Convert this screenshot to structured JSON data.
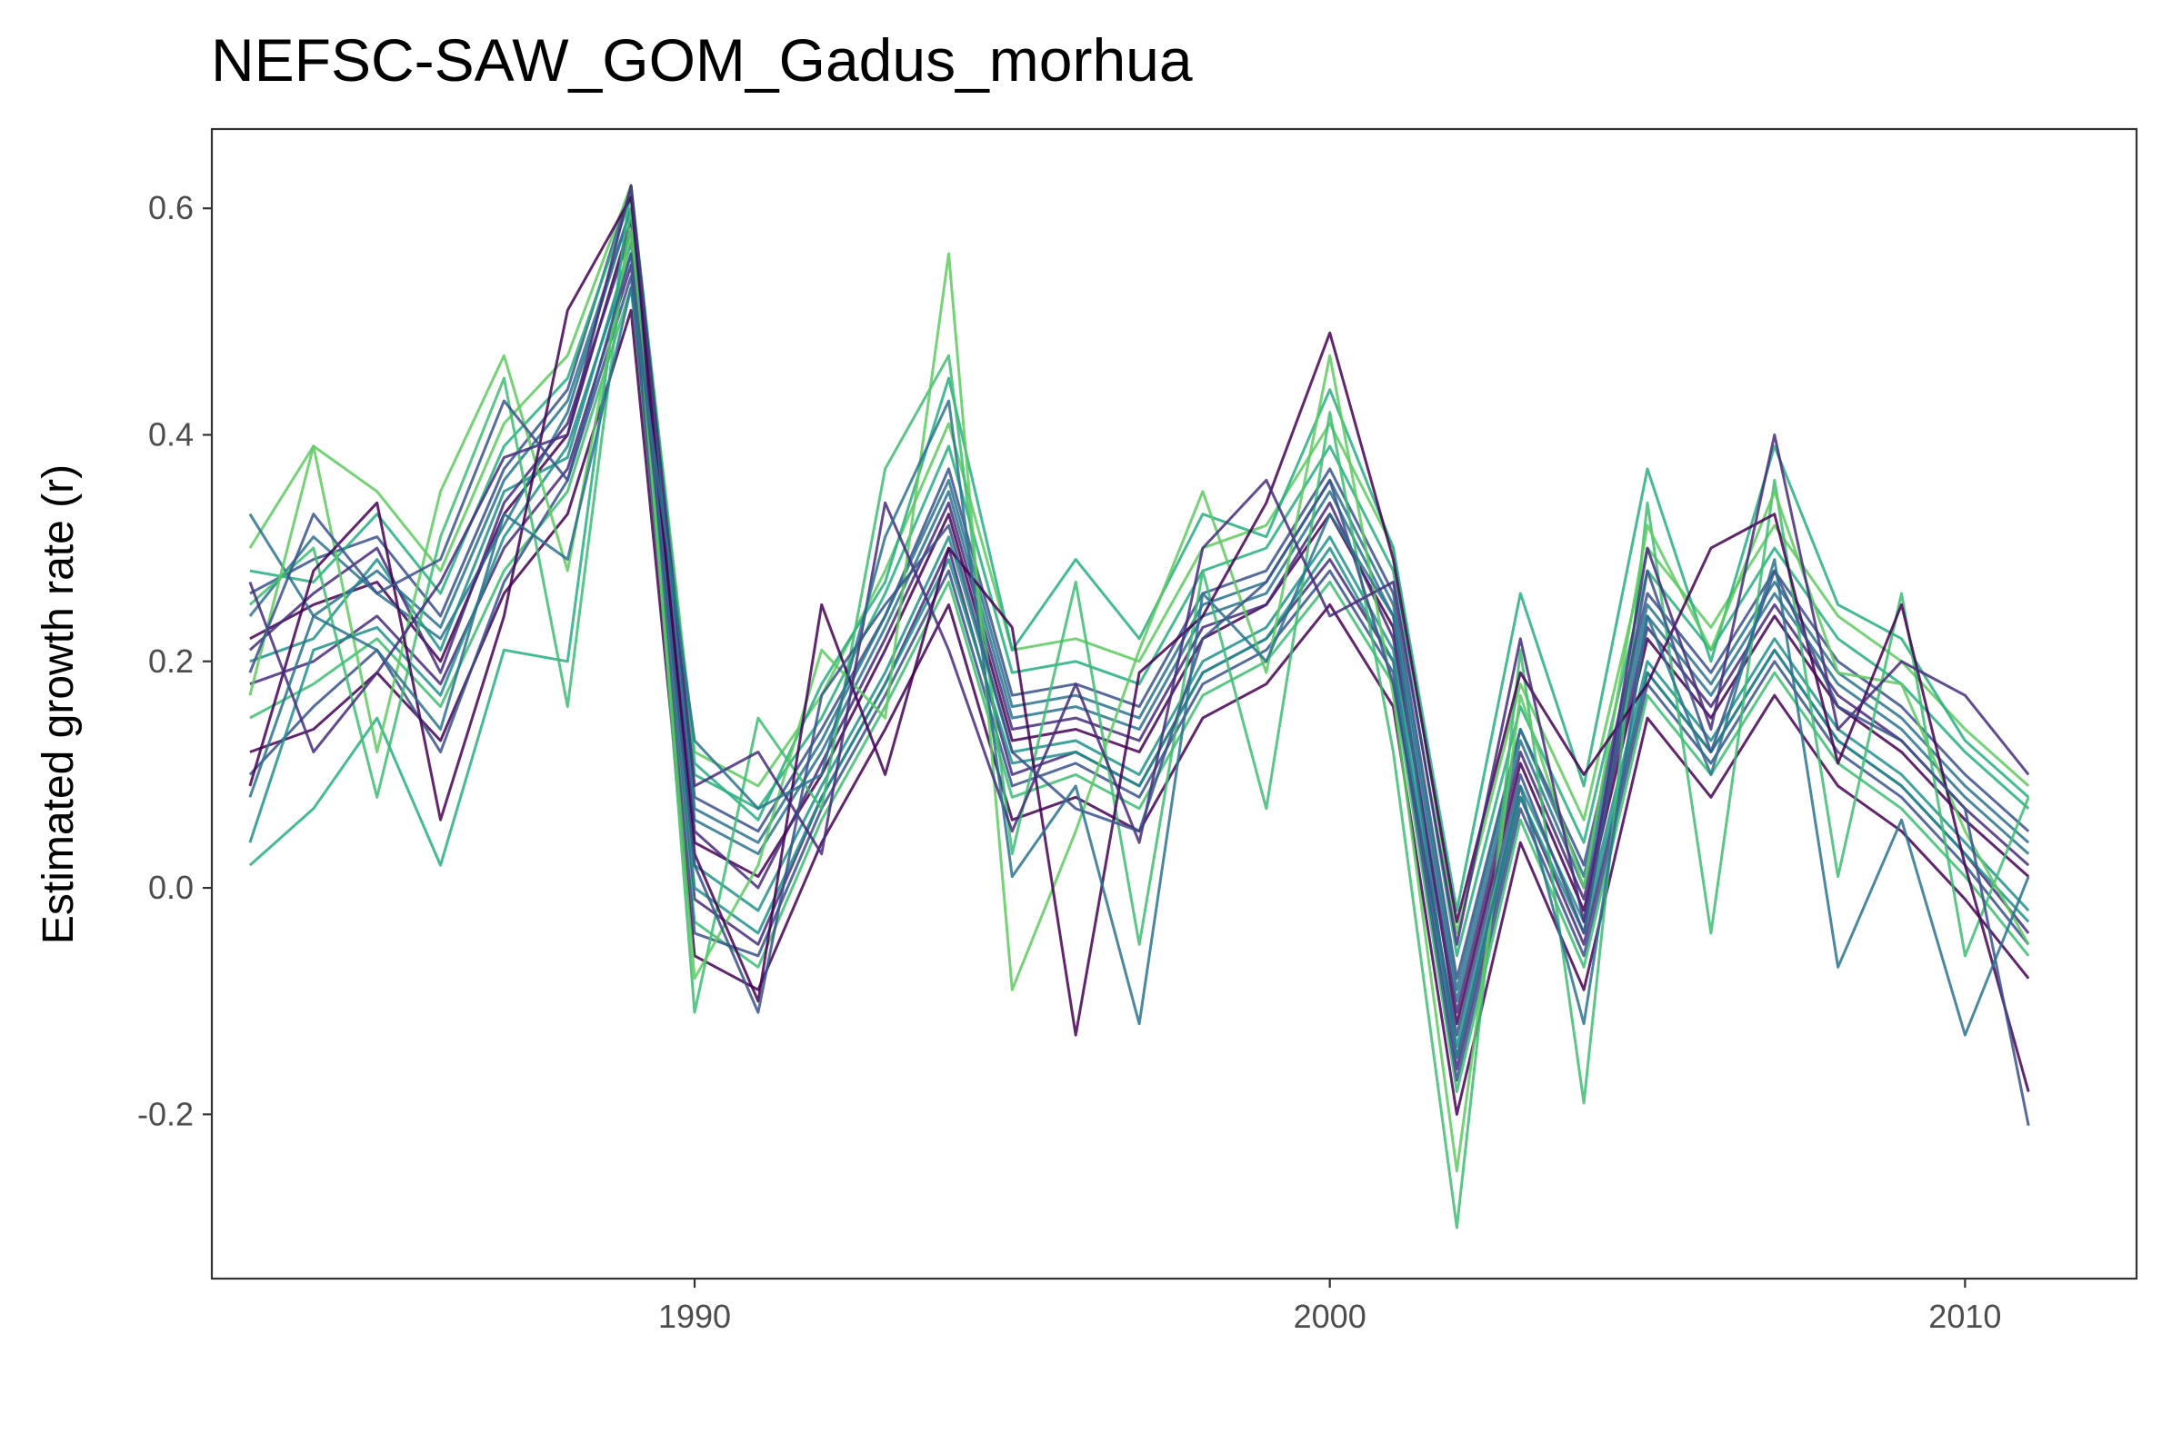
{
  "chart_data": {
    "type": "line",
    "title": "NEFSC-SAW_GOM_Gadus_morhua",
    "xlabel": "",
    "ylabel": "Estimated growth rate (r)",
    "xlim": [
      1982.4,
      2012.7
    ],
    "ylim": [
      -0.345,
      0.67
    ],
    "x_ticks": [
      1990,
      2000,
      2010
    ],
    "x_tick_labels": [
      "1990",
      "2000",
      "2010"
    ],
    "y_ticks": [
      -0.2,
      0.0,
      0.2,
      0.4,
      0.6
    ],
    "y_tick_labels": [
      "-0.2",
      "0.0",
      "0.2",
      "0.4",
      "0.6"
    ],
    "grid": false,
    "legend": "none",
    "x": [
      1983,
      1984,
      1985,
      1986,
      1987,
      1988,
      1989,
      1990,
      1991,
      1992,
      1993,
      1994,
      1995,
      1996,
      1997,
      1998,
      1999,
      2000,
      2001,
      2002,
      2003,
      2004,
      2005,
      2006,
      2007,
      2008,
      2009,
      2010,
      2011
    ],
    "palette": [
      "#440154",
      "#472d7b",
      "#3b528b",
      "#2c728e",
      "#21918c",
      "#28ae80",
      "#3fbc73",
      "#5ec962"
    ],
    "series": [
      {
        "values": [
          0.22,
          0.25,
          0.27,
          0.2,
          0.33,
          0.4,
          0.59,
          0.04,
          0.01,
          0.1,
          0.21,
          0.33,
          0.13,
          0.14,
          0.12,
          0.22,
          0.25,
          0.33,
          0.23,
          -0.12,
          0.11,
          -0.02,
          0.22,
          0.15,
          0.24,
          0.16,
          0.12,
          0.06,
          0.01
        ]
      },
      {
        "values": [
          0.18,
          0.2,
          0.24,
          0.18,
          0.3,
          0.37,
          0.55,
          -0.01,
          -0.05,
          0.08,
          0.18,
          0.3,
          0.1,
          0.12,
          0.09,
          0.19,
          0.22,
          0.29,
          0.2,
          -0.16,
          0.08,
          -0.05,
          0.19,
          0.12,
          0.21,
          0.13,
          0.09,
          0.03,
          -0.04
        ]
      },
      {
        "values": [
          0.26,
          0.29,
          0.31,
          0.24,
          0.37,
          0.44,
          0.62,
          0.08,
          0.05,
          0.14,
          0.24,
          0.37,
          0.17,
          0.18,
          0.16,
          0.26,
          0.28,
          0.37,
          0.26,
          -0.08,
          0.14,
          0.02,
          0.26,
          0.19,
          0.28,
          0.2,
          0.16,
          0.1,
          0.05
        ]
      },
      {
        "values": [
          0.24,
          0.31,
          0.26,
          0.22,
          0.32,
          0.42,
          0.6,
          0.06,
          0.03,
          0.12,
          0.23,
          0.35,
          0.15,
          0.16,
          0.14,
          0.24,
          0.26,
          0.35,
          0.24,
          -0.1,
          0.13,
          0.0,
          0.24,
          0.17,
          0.26,
          0.18,
          0.14,
          0.08,
          0.03
        ]
      },
      {
        "values": [
          0.2,
          0.22,
          0.29,
          0.21,
          0.35,
          0.38,
          0.57,
          0.02,
          -0.02,
          0.09,
          0.19,
          0.31,
          0.12,
          0.13,
          0.1,
          0.2,
          0.23,
          0.31,
          0.21,
          -0.14,
          0.09,
          -0.03,
          0.2,
          0.13,
          0.22,
          0.14,
          0.1,
          0.04,
          -0.02
        ]
      },
      {
        "values": [
          0.28,
          0.27,
          0.33,
          0.26,
          0.39,
          0.45,
          0.61,
          0.1,
          0.07,
          0.15,
          0.26,
          0.39,
          0.19,
          0.2,
          0.18,
          0.28,
          0.3,
          0.39,
          0.28,
          -0.06,
          0.16,
          0.04,
          0.28,
          0.21,
          0.3,
          0.22,
          0.18,
          0.12,
          0.07
        ]
      },
      {
        "values": [
          0.15,
          0.18,
          0.22,
          0.16,
          0.28,
          0.35,
          0.53,
          -0.03,
          -0.07,
          0.06,
          0.16,
          0.27,
          0.08,
          0.1,
          0.07,
          0.17,
          0.2,
          0.27,
          0.18,
          -0.18,
          0.06,
          -0.07,
          0.17,
          0.1,
          0.19,
          0.11,
          0.07,
          0.01,
          -0.06
        ]
      },
      {
        "values": [
          0.3,
          0.39,
          0.35,
          0.28,
          0.41,
          0.47,
          0.62,
          0.12,
          0.09,
          0.17,
          0.28,
          0.41,
          0.21,
          0.22,
          0.2,
          0.3,
          0.32,
          0.41,
          0.3,
          -0.04,
          0.18,
          0.06,
          0.3,
          0.23,
          0.32,
          0.24,
          0.2,
          0.14,
          0.09
        ]
      },
      {
        "values": [
          0.12,
          0.14,
          0.19,
          0.13,
          0.26,
          0.33,
          0.51,
          -0.06,
          -0.09,
          0.04,
          0.14,
          0.25,
          0.06,
          0.08,
          0.05,
          0.15,
          0.18,
          0.25,
          0.16,
          -0.2,
          0.04,
          -0.09,
          0.15,
          0.08,
          0.17,
          0.09,
          0.05,
          -0.01,
          -0.08
        ]
      },
      {
        "values": [
          0.21,
          0.26,
          0.3,
          0.19,
          0.34,
          0.41,
          0.58,
          0.05,
          0.0,
          0.11,
          0.22,
          0.34,
          0.14,
          0.15,
          0.13,
          0.23,
          0.25,
          0.34,
          0.22,
          -0.11,
          0.12,
          -0.01,
          0.23,
          0.16,
          0.25,
          0.17,
          0.13,
          0.07,
          0.02
        ]
      },
      {
        "values": [
          0.1,
          0.16,
          0.21,
          0.12,
          0.27,
          0.36,
          0.54,
          -0.04,
          -0.06,
          0.07,
          0.17,
          0.28,
          0.09,
          0.11,
          0.08,
          0.18,
          0.21,
          0.28,
          0.19,
          -0.17,
          0.07,
          -0.06,
          0.18,
          0.11,
          0.2,
          0.12,
          0.08,
          0.02,
          -0.05
        ]
      },
      {
        "values": [
          0.33,
          0.24,
          0.28,
          0.23,
          0.36,
          0.43,
          0.6,
          0.07,
          0.04,
          0.13,
          0.24,
          0.36,
          0.16,
          0.17,
          0.15,
          0.25,
          0.27,
          0.36,
          0.25,
          -0.09,
          0.14,
          0.01,
          0.25,
          0.18,
          0.27,
          0.19,
          0.15,
          0.09,
          0.04
        ]
      },
      {
        "values": [
          0.04,
          0.21,
          0.23,
          0.17,
          0.31,
          0.39,
          0.56,
          0.0,
          -0.04,
          0.08,
          0.18,
          0.29,
          0.11,
          0.12,
          0.09,
          0.19,
          0.22,
          0.3,
          0.2,
          -0.15,
          0.08,
          -0.04,
          0.19,
          0.12,
          0.21,
          0.13,
          0.09,
          0.03,
          -0.03
        ]
      },
      {
        "values": [
          0.02,
          0.07,
          0.15,
          0.02,
          0.21,
          0.2,
          0.62,
          0.11,
          0.06,
          0.18,
          0.27,
          0.45,
          0.21,
          0.29,
          0.22,
          0.33,
          0.31,
          0.44,
          0.3,
          -0.02,
          0.26,
          0.09,
          0.37,
          0.2,
          0.39,
          0.25,
          0.22,
          0.13,
          0.08
        ]
      },
      {
        "values": [
          0.25,
          0.3,
          0.08,
          0.31,
          0.45,
          0.16,
          0.6,
          -0.11,
          0.15,
          0.07,
          0.37,
          0.47,
          0.03,
          0.27,
          -0.05,
          0.28,
          0.07,
          0.42,
          0.12,
          -0.3,
          0.21,
          -0.19,
          0.34,
          -0.04,
          0.36,
          0.01,
          0.26,
          -0.06,
          0.08
        ]
      },
      {
        "values": [
          0.17,
          0.39,
          0.12,
          0.35,
          0.47,
          0.28,
          0.58,
          -0.08,
          0.02,
          0.21,
          0.15,
          0.56,
          -0.09,
          0.05,
          0.21,
          0.35,
          0.19,
          0.47,
          0.17,
          -0.25,
          0.17,
          0.0,
          0.32,
          0.21,
          0.35,
          0.19,
          0.18,
          0.05,
          -0.05
        ]
      },
      {
        "values": [
          0.09,
          0.28,
          0.34,
          0.06,
          0.24,
          0.51,
          0.61,
          0.03,
          -0.1,
          0.25,
          0.1,
          0.3,
          0.23,
          -0.13,
          0.19,
          0.24,
          0.34,
          0.49,
          0.29,
          -0.03,
          0.19,
          0.1,
          0.18,
          0.3,
          0.33,
          0.11,
          0.25,
          0.02,
          -0.18
        ]
      },
      {
        "values": [
          0.27,
          0.12,
          0.19,
          0.27,
          0.38,
          0.4,
          0.62,
          0.09,
          0.12,
          0.03,
          0.34,
          0.21,
          0.05,
          0.18,
          0.04,
          0.3,
          0.36,
          0.24,
          0.27,
          -0.05,
          0.22,
          -0.03,
          0.3,
          0.14,
          0.4,
          0.14,
          0.2,
          0.17,
          0.1
        ]
      },
      {
        "values": [
          0.19,
          0.33,
          0.26,
          0.29,
          0.43,
          0.36,
          0.56,
          0.02,
          -0.11,
          0.17,
          0.25,
          0.32,
          0.12,
          0.07,
          0.05,
          0.22,
          0.27,
          0.36,
          0.18,
          -0.13,
          0.1,
          -0.04,
          0.28,
          0.12,
          0.28,
          0.16,
          0.13,
          0.07,
          -0.21
        ]
      },
      {
        "values": [
          0.08,
          0.24,
          0.21,
          0.14,
          0.33,
          0.29,
          0.53,
          0.13,
          0.07,
          0.1,
          0.31,
          0.43,
          0.01,
          0.09,
          -0.12,
          0.26,
          0.2,
          0.33,
          0.24,
          -0.15,
          0.09,
          -0.12,
          0.24,
          0.1,
          0.29,
          -0.07,
          0.06,
          -0.13,
          0.01
        ]
      }
    ]
  }
}
